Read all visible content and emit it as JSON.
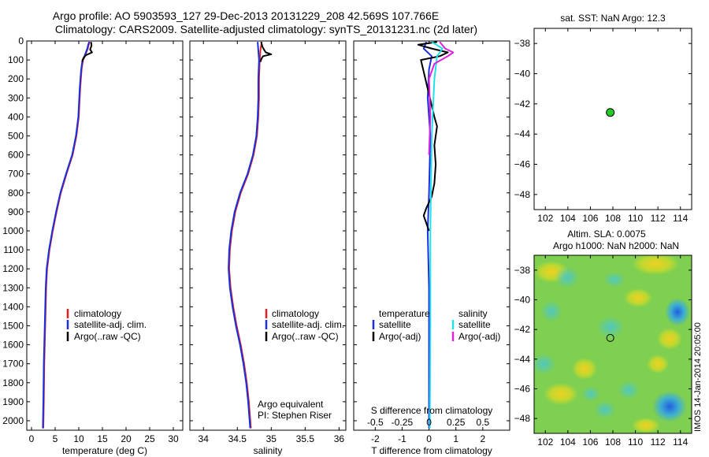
{
  "header": {
    "line1": "Argo profile: AO 5903593_127 29-Dec-2013 20131229_208 42.569S 107.766E",
    "line2": "Climatology: CARS2009. Satellite-adjusted climatology: synTS_20131231.nc (2d later)"
  },
  "side_label": "IMOS 14-Jan-2014 20:05:00",
  "colors": {
    "climatology": "#e02020",
    "satellite": "#1a2fe0",
    "argo": "#000000",
    "sal_satellite": "#20e0e8",
    "sal_argo": "#e020e0",
    "marker": "#22cc22"
  },
  "chart_data": [
    {
      "id": "temperature",
      "type": "line",
      "xlabel": "temperature (deg C)",
      "ylim": [
        0,
        2050
      ],
      "xlim": [
        -1,
        32
      ],
      "xticks": [
        0,
        5,
        10,
        15,
        20,
        25,
        30
      ],
      "xtick_labels": [
        "0",
        "5",
        "10",
        "15",
        "20",
        "25",
        "30"
      ],
      "yticks": [
        0,
        100,
        200,
        300,
        400,
        500,
        600,
        700,
        800,
        900,
        1000,
        1100,
        1200,
        1300,
        1400,
        1500,
        1600,
        1700,
        1800,
        1900,
        2000
      ],
      "ytick_labels": [
        "0",
        "100",
        "200",
        "300",
        "400",
        "500",
        "600",
        "700",
        "800",
        "900",
        "1000",
        "1100",
        "1200",
        "1300",
        "1400",
        "1500",
        "1600",
        "1700",
        "1800",
        "1900",
        "2000"
      ],
      "legend": [
        "climatology",
        "satellite-adj. clim.",
        "Argo(..raw -QC)"
      ],
      "legend_position": "lower-right",
      "series": [
        {
          "name": "climatology",
          "color_key": "climatology",
          "points": [
            [
              12.3,
              5
            ],
            [
              12.1,
              20
            ],
            [
              11.9,
              40
            ],
            [
              11.6,
              60
            ],
            [
              11.3,
              80
            ],
            [
              10.9,
              100
            ],
            [
              10.6,
              150
            ],
            [
              10.3,
              250
            ],
            [
              10.0,
              400
            ],
            [
              9.5,
              500
            ],
            [
              8.7,
              600
            ],
            [
              7.4,
              700
            ],
            [
              6.2,
              800
            ],
            [
              5.3,
              900
            ],
            [
              4.5,
              1000
            ],
            [
              3.8,
              1100
            ],
            [
              3.3,
              1200
            ],
            [
              3.1,
              1300
            ],
            [
              2.9,
              1500
            ],
            [
              2.7,
              1700
            ],
            [
              2.6,
              1900
            ],
            [
              2.5,
              2040
            ]
          ]
        },
        {
          "name": "satellite-adj. clim.",
          "color_key": "satellite",
          "points": [
            [
              12.2,
              5
            ],
            [
              12.0,
              20
            ],
            [
              11.8,
              40
            ],
            [
              11.5,
              60
            ],
            [
              11.2,
              80
            ],
            [
              10.8,
              100
            ],
            [
              10.5,
              150
            ],
            [
              10.2,
              250
            ],
            [
              9.9,
              400
            ],
            [
              9.4,
              500
            ],
            [
              8.6,
              600
            ],
            [
              7.3,
              700
            ],
            [
              6.1,
              800
            ],
            [
              5.2,
              900
            ],
            [
              4.4,
              1000
            ],
            [
              3.7,
              1100
            ],
            [
              3.2,
              1200
            ],
            [
              3.0,
              1300
            ],
            [
              2.8,
              1500
            ],
            [
              2.6,
              1700
            ],
            [
              2.5,
              1900
            ],
            [
              2.4,
              2040
            ]
          ]
        },
        {
          "name": "Argo(..raw -QC)",
          "color_key": "argo",
          "points": [
            [
              12.6,
              5
            ],
            [
              12.7,
              25
            ],
            [
              12.4,
              45
            ],
            [
              12.8,
              60
            ],
            [
              11.5,
              75
            ],
            [
              11.0,
              90
            ],
            [
              10.7,
              110
            ]
          ]
        }
      ]
    },
    {
      "id": "salinity",
      "type": "line",
      "xlabel": "salinity",
      "ylim": [
        0,
        2050
      ],
      "xlim": [
        33.8,
        36.1
      ],
      "xticks": [
        34,
        34.5,
        35,
        35.5,
        36
      ],
      "xtick_labels": [
        "34",
        "34.5",
        "35",
        "35.5",
        "36"
      ],
      "legend": [
        "climatology",
        "satellite-adj. clim.",
        "Argo(..raw -QC)"
      ],
      "legend_position": "lower-right",
      "annotation": [
        "Argo equivalent",
        "PI: Stephen Riser"
      ],
      "series": [
        {
          "name": "climatology",
          "color_key": "climatology",
          "points": [
            [
              34.86,
              5
            ],
            [
              34.84,
              50
            ],
            [
              34.83,
              100
            ],
            [
              34.82,
              200
            ],
            [
              34.82,
              300
            ],
            [
              34.81,
              400
            ],
            [
              34.79,
              500
            ],
            [
              34.74,
              600
            ],
            [
              34.66,
              700
            ],
            [
              34.55,
              800
            ],
            [
              34.47,
              900
            ],
            [
              34.42,
              1000
            ],
            [
              34.39,
              1100
            ],
            [
              34.38,
              1200
            ],
            [
              34.4,
              1300
            ],
            [
              34.44,
              1400
            ],
            [
              34.49,
              1500
            ],
            [
              34.55,
              1600
            ],
            [
              34.6,
              1700
            ],
            [
              34.64,
              1800
            ],
            [
              34.67,
              1900
            ],
            [
              34.7,
              2040
            ]
          ]
        },
        {
          "name": "satellite-adj. clim.",
          "color_key": "satellite",
          "points": [
            [
              34.8,
              5
            ],
            [
              34.81,
              50
            ],
            [
              34.82,
              100
            ],
            [
              34.81,
              200
            ],
            [
              34.81,
              300
            ],
            [
              34.8,
              400
            ],
            [
              34.78,
              500
            ],
            [
              34.73,
              600
            ],
            [
              34.65,
              700
            ],
            [
              34.54,
              800
            ],
            [
              34.46,
              900
            ],
            [
              34.41,
              1000
            ],
            [
              34.38,
              1100
            ],
            [
              34.37,
              1200
            ],
            [
              34.39,
              1300
            ],
            [
              34.43,
              1400
            ],
            [
              34.48,
              1500
            ],
            [
              34.54,
              1600
            ],
            [
              34.59,
              1700
            ],
            [
              34.63,
              1800
            ],
            [
              34.66,
              1900
            ],
            [
              34.69,
              2040
            ]
          ]
        },
        {
          "name": "Argo(..raw -QC)",
          "color_key": "argo",
          "points": [
            [
              34.85,
              5
            ],
            [
              34.87,
              30
            ],
            [
              34.9,
              50
            ],
            [
              34.92,
              60
            ],
            [
              35.0,
              70
            ],
            [
              34.88,
              80
            ],
            [
              34.86,
              90
            ],
            [
              34.84,
              110
            ]
          ]
        }
      ]
    },
    {
      "id": "difference",
      "type": "line",
      "xlabel": "T difference from climatology",
      "xlabel_top": "S difference from climatology",
      "ylim": [
        0,
        2050
      ],
      "xlim": [
        -2.8,
        3.0
      ],
      "xticks": [
        -2,
        -1,
        0,
        1,
        2
      ],
      "xtick_labels": [
        "-2",
        "-1",
        "0",
        "1",
        "2"
      ],
      "top_tick_labels": [
        "-0.5",
        "-0.25",
        "0",
        "0.25",
        "0.5"
      ],
      "legend_left_title": "temperature",
      "legend_right_title": "salinity",
      "legend_left": [
        "satellite",
        "Argo(-adj)"
      ],
      "legend_right": [
        "satellite",
        "Argo(-adj)"
      ],
      "series": [
        {
          "name": "satellite",
          "color_key": "satellite",
          "points": [
            [
              -0.1,
              5
            ],
            [
              -0.2,
              40
            ],
            [
              0.1,
              80
            ],
            [
              0.0,
              150
            ],
            [
              -0.05,
              300
            ],
            [
              0.05,
              500
            ],
            [
              0.0,
              800
            ],
            [
              -0.05,
              1000
            ],
            [
              0.0,
              1300
            ],
            [
              0.0,
              1700
            ],
            [
              0.0,
              2040
            ]
          ]
        },
        {
          "name": "Argo(-adj)",
          "color_key": "argo",
          "points": [
            [
              0.3,
              5
            ],
            [
              -0.4,
              20
            ],
            [
              0.1,
              40
            ],
            [
              0.7,
              60
            ],
            [
              0.4,
              80
            ],
            [
              -0.3,
              100
            ],
            [
              0.2,
              400
            ],
            [
              0.3,
              450
            ],
            [
              0.2,
              550
            ],
            [
              0.25,
              650
            ],
            [
              0.2,
              750
            ],
            [
              0.1,
              820
            ],
            [
              -0.1,
              880
            ],
            [
              -0.2,
              920
            ],
            [
              0.0,
              1000
            ]
          ]
        },
        {
          "name": "sal satellite",
          "color_key": "sal_satellite",
          "points": [
            [
              0.1,
              5
            ],
            [
              0.5,
              40
            ],
            [
              0.3,
              80
            ],
            [
              0.2,
              200
            ],
            [
              0.1,
              500
            ],
            [
              0.05,
              1000
            ],
            [
              0.05,
              1500
            ],
            [
              0.03,
              2040
            ]
          ]
        },
        {
          "name": "sal Argo(-adj)",
          "color_key": "sal_argo",
          "points": [
            [
              0.4,
              5
            ],
            [
              0.6,
              40
            ],
            [
              0.9,
              60
            ],
            [
              0.7,
              80
            ],
            [
              0.2,
              120
            ],
            [
              0.0,
              200
            ],
            [
              0.05,
              400
            ],
            [
              0.0,
              600
            ]
          ]
        }
      ]
    },
    {
      "id": "sst_map",
      "type": "scatter",
      "title": "sat. SST: NaN Argo: 12.3",
      "xlim": [
        101,
        115
      ],
      "ylim": [
        -49,
        -37
      ],
      "xticks": [
        102,
        104,
        106,
        108,
        110,
        112,
        114
      ],
      "yticks": [
        -38,
        -40,
        -42,
        -44,
        -46,
        -48
      ],
      "xtick_labels": [
        "102",
        "104",
        "106",
        "108",
        "110",
        "112",
        "114"
      ],
      "ytick_labels": [
        "−38",
        "−40",
        "−42",
        "−44",
        "−46",
        "−48"
      ],
      "points": [
        [
          107.766,
          -42.569
        ]
      ]
    },
    {
      "id": "sla_map",
      "type": "heatmap",
      "title_line1": "Altim. SLA: 0.0075",
      "title_line2": "Argo h1000: NaN h2000: NaN",
      "xlim": [
        101,
        115
      ],
      "ylim": [
        -49,
        -37
      ],
      "xticks": [
        102,
        104,
        106,
        108,
        110,
        112,
        114
      ],
      "yticks": [
        -38,
        -40,
        -42,
        -44,
        -46,
        -48
      ],
      "xtick_labels": [
        "102",
        "104",
        "106",
        "108",
        "110",
        "112",
        "114"
      ],
      "ytick_labels": [
        "−38",
        "−40",
        "−42",
        "−44",
        "−46",
        "−48"
      ],
      "points": [
        [
          107.766,
          -42.569
        ]
      ]
    }
  ]
}
